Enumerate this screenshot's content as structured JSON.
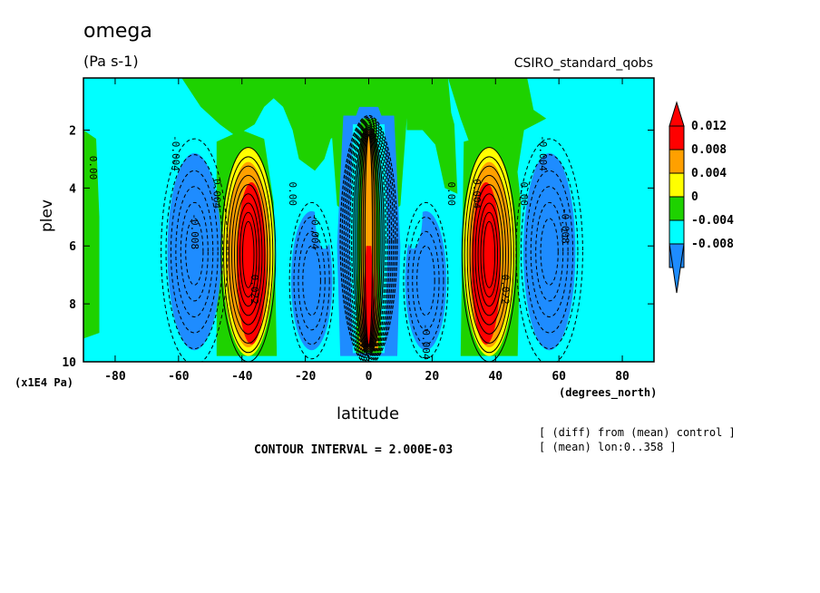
{
  "header": {
    "title": "omega",
    "units": "(Pa s-1)",
    "dataset": "CSIRO_standard_qobs"
  },
  "axes": {
    "ylabel": "plev",
    "yunit": "(x1E4 Pa)",
    "xlabel": "latitude",
    "xunit": "(degrees_north)"
  },
  "footer": {
    "contour_interval": "CONTOUR INTERVAL = 2.000E-03",
    "note1": "[ (diff) from (mean) control ]",
    "note2": "[ (mean) lon:0..358 ]"
  },
  "colors": {
    "dark_blue": "#1e8cff",
    "light_blue": "#00ffff",
    "green": "#1ed200",
    "yellow": "#ffff00",
    "orange": "#ffa000",
    "red": "#ff0000"
  },
  "chart_data": {
    "type": "heatmap",
    "xlim": [
      -90,
      90
    ],
    "ylim": [
      10,
      0.2
    ],
    "x_ticks": [
      -80,
      -60,
      -40,
      -20,
      0,
      20,
      40,
      60,
      80
    ],
    "x_tick_labels": [
      "-80",
      "-60",
      "-40",
      "-20",
      "0",
      "20",
      "40",
      "60",
      "80"
    ],
    "y_ticks": [
      2,
      4,
      6,
      8,
      10
    ],
    "y_tick_labels": [
      "2",
      "4",
      "6",
      "8",
      "10"
    ],
    "contour_interval": 0.002,
    "colorbar": {
      "levels": [
        -0.008,
        -0.004,
        0,
        0.004,
        0.008,
        0.012
      ],
      "labels": [
        "-0.008",
        "-0.004",
        "0",
        "0.004",
        "0.008",
        "0.012"
      ],
      "colors": [
        "#1e8cff",
        "#00ffff",
        "#1ed200",
        "#ffff00",
        "#ffa000",
        "#ff0000"
      ]
    },
    "contour_labels": [
      {
        "text": "0.00",
        "lat": -88,
        "plev": 3.3
      },
      {
        "text": "-0.004",
        "lat": -62,
        "plev": 2.8
      },
      {
        "text": "-0.008",
        "lat": -56,
        "plev": 5.5
      },
      {
        "text": "0.004",
        "lat": -49,
        "plev": 4.2
      },
      {
        "text": "0.022",
        "lat": -37,
        "plev": 7.5
      },
      {
        "text": "0.00",
        "lat": -25,
        "plev": 4.2
      },
      {
        "text": "-0.004",
        "lat": -18,
        "plev": 5.5
      },
      {
        "text": "-0.004",
        "lat": 17,
        "plev": 9.3
      },
      {
        "text": "0.00",
        "lat": 25,
        "plev": 4.2
      },
      {
        "text": "0.004",
        "lat": 33,
        "plev": 4.2
      },
      {
        "text": "0.022",
        "lat": 42,
        "plev": 7.5
      },
      {
        "text": "0.00",
        "lat": 48,
        "plev": 4.2
      },
      {
        "text": "-0.004",
        "lat": 54,
        "plev": 2.8
      },
      {
        "text": "-0.008",
        "lat": 61,
        "plev": 5.3
      }
    ]
  }
}
